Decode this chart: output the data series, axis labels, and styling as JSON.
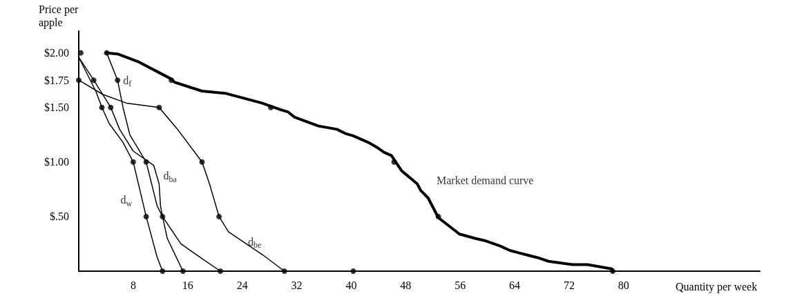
{
  "chart_data": {
    "type": "line",
    "xlabel": "Quantity per week",
    "ylabel": "Price per apple",
    "xlim": [
      0,
      100
    ],
    "ylim": [
      0,
      2.2
    ],
    "xticks": [
      8,
      16,
      24,
      32,
      40,
      48,
      56,
      64,
      72,
      80
    ],
    "yticks": [
      {
        "value": 0.5,
        "label": "$.50"
      },
      {
        "value": 1,
        "label": "$1.00"
      },
      {
        "value": 1.5,
        "label": "$1.50"
      },
      {
        "value": 1.75,
        "label": "$1.75"
      },
      {
        "value": 2,
        "label": "$2.00"
      }
    ],
    "grid": false,
    "marker": "none",
    "series": [
      {
        "name": "Market demand curve",
        "color": "#000000",
        "x": [
          4.1,
          5.7,
          8.7,
          12.7,
          13.6,
          14.1,
          18.1,
          21.5,
          26.9,
          29.6,
          30.7,
          31.7,
          35.2,
          37.9,
          39.2,
          40.3,
          42.5,
          43.9,
          44.8,
          45.9,
          47.4,
          49.7,
          50.2,
          51.3,
          52.8,
          55.9,
          58.2,
          59.6,
          61.9,
          63.3,
          64.5,
          65.7,
          67.6,
          69.0,
          70.1,
          72.5,
          74.7,
          78.3,
          78.4
        ],
        "values": [
          2.0,
          1.99,
          1.92,
          1.79,
          1.76,
          1.73,
          1.65,
          1.63,
          1.54,
          1.48,
          1.46,
          1.41,
          1.33,
          1.3,
          1.26,
          1.24,
          1.18,
          1.13,
          1.09,
          1.06,
          0.92,
          0.8,
          0.74,
          0.67,
          0.49,
          0.34,
          0.3,
          0.28,
          0.23,
          0.19,
          0.17,
          0.15,
          0.12,
          0.09,
          0.08,
          0.06,
          0.06,
          0.02,
          0
        ]
      },
      {
        "name": "d$_{f}$",
        "color": "#000000",
        "x": [
          4.1,
          5.7,
          6.5,
          7.5,
          9.9,
          11.5,
          12.3,
          13.0,
          15.3
        ],
        "values": [
          2.0,
          1.75,
          1.5,
          1.25,
          1.0,
          0.6,
          0.5,
          0.3,
          0
        ]
      },
      {
        "name": "d$_{ba}$",
        "color": "#000000",
        "x": [
          0,
          2.2,
          4.7,
          6.0,
          8.0,
          11.0,
          11.8,
          12.0,
          12.3,
          15.0,
          18.0,
          20.8
        ],
        "values": [
          1.96,
          1.75,
          1.5,
          1.3,
          1.1,
          0.97,
          0.8,
          0.6,
          0.5,
          0.25,
          0.12,
          0
        ]
      },
      {
        "name": "d$_{w}$",
        "color": "#000000",
        "x": [
          0,
          2.5,
          3.4,
          4.5,
          6.5,
          8.0,
          9.9,
          11.5,
          12.3
        ],
        "values": [
          1.96,
          1.65,
          1.5,
          1.35,
          1.18,
          1.0,
          0.5,
          0.13,
          0
        ]
      },
      {
        "name": "d$_{be}$",
        "color": "#000000",
        "x": [
          0,
          3.5,
          7.0,
          11.8,
          14.5,
          18.1,
          19.2,
          20.6,
          22.0,
          27.0,
          30.2
        ],
        "values": [
          1.75,
          1.62,
          1.54,
          1.5,
          1.3,
          1.0,
          0.8,
          0.5,
          0.36,
          0.15,
          0
        ]
      },
      {
        "type": "scatter",
        "marker": "circle",
        "color": "#000000",
        "x": [
          0.3,
          0,
          2.2,
          3.4,
          4.7,
          11.8,
          4.1,
          5.7,
          13.6,
          28.2,
          8.0,
          9.9,
          18.1,
          46.3,
          9.9,
          12.3,
          20.6,
          52.8,
          12.3,
          15.3,
          20.8,
          30.2,
          40.3,
          78.4
        ],
        "values": [
          2.0,
          1.75,
          1.75,
          1.5,
          1.5,
          1.5,
          2.0,
          1.75,
          1.75,
          1.5,
          1.0,
          1.0,
          1.0,
          1.0,
          0.5,
          0.5,
          0.5,
          0.5,
          0,
          0,
          0,
          0,
          0,
          0
        ]
      }
    ]
  }
}
